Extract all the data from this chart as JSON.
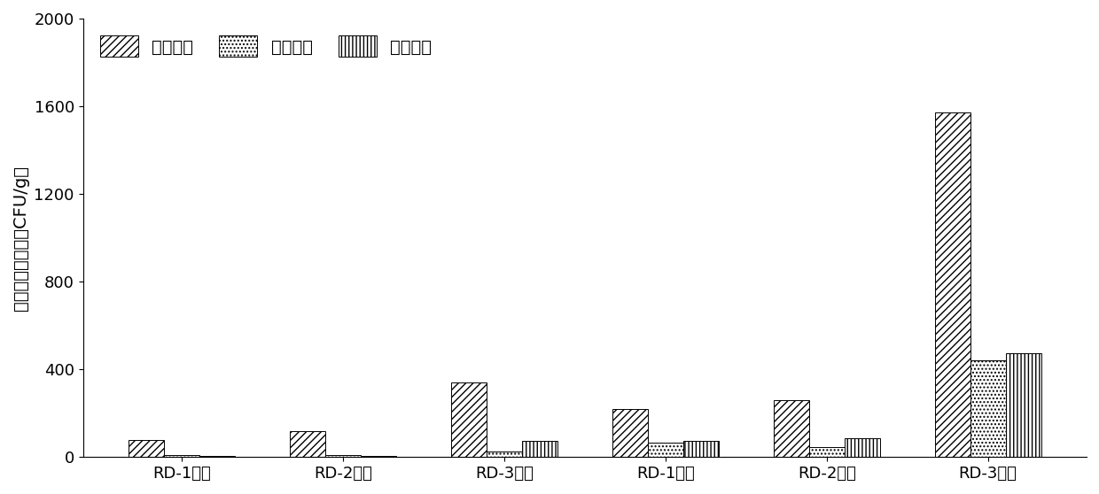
{
  "categories": [
    "RD-1一天",
    "RD-2一天",
    "RD-3一天",
    "RD-1三月",
    "RD-2三月",
    "RD-3三月"
  ],
  "series": {
    "菌落总数": [
      80,
      120,
      340,
      220,
      260,
      1570
    ],
    "酵母总数": [
      8,
      8,
      25,
      65,
      45,
      440
    ],
    "霍菌总数": [
      4,
      4,
      75,
      75,
      85,
      475
    ]
  },
  "ylabel": "香料微生物数量（CFU/g）",
  "ylim": [
    0,
    2000
  ],
  "yticks": [
    0,
    400,
    800,
    1200,
    1600,
    2000
  ],
  "legend_labels": [
    "菌落总数",
    "酵母总数",
    "霍菌总数"
  ],
  "hatch_patterns": [
    "////",
    "....",
    "||||"
  ],
  "bar_colors": [
    "white",
    "white",
    "white"
  ],
  "bar_edgecolors": [
    "black",
    "black",
    "black"
  ],
  "background_color": "white",
  "bar_width": 0.22,
  "label_fontsize": 14,
  "tick_fontsize": 13,
  "legend_fontsize": 14
}
